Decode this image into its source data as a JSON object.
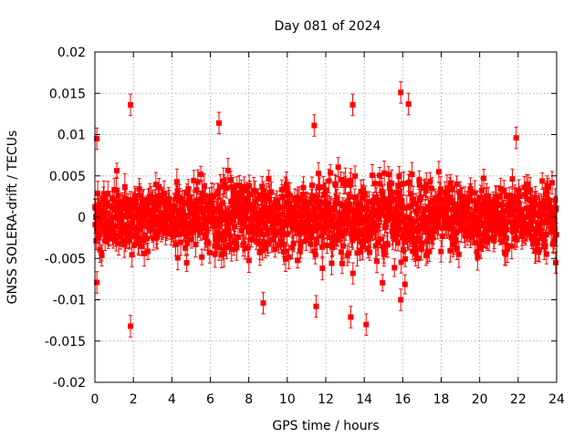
{
  "chart_data": {
    "type": "scatter",
    "title": "Day 081 of 2024",
    "xlabel": "GPS time / hours",
    "ylabel": "GNSS SOLERA-drift / TECUs",
    "xlim": [
      0,
      24
    ],
    "ylim": [
      -0.02,
      0.02
    ],
    "x_ticks": [
      0,
      2,
      4,
      6,
      8,
      10,
      12,
      14,
      16,
      18,
      20,
      22,
      24
    ],
    "y_ticks": [
      -0.02,
      -0.015,
      -0.01,
      -0.005,
      0,
      0.005,
      0.01,
      0.015,
      0.02
    ],
    "y_tick_labels": [
      "-0.02",
      "-0.015",
      "-0.01",
      "-0.005",
      "0",
      "0.005",
      "0.01",
      "0.015",
      "0.02"
    ],
    "grid": true,
    "marker": "square",
    "error_bars": true,
    "series_color": "#ff0000",
    "notable_points": [
      {
        "x": 1.85,
        "y": 0.0136
      },
      {
        "x": 1.85,
        "y": -0.0132
      },
      {
        "x": 15.9,
        "y": 0.0151
      },
      {
        "x": 16.3,
        "y": 0.0137
      },
      {
        "x": 13.4,
        "y": 0.0136
      },
      {
        "x": 11.4,
        "y": 0.0111
      },
      {
        "x": 6.45,
        "y": 0.0114
      },
      {
        "x": 0.1,
        "y": 0.0095
      },
      {
        "x": 0.1,
        "y": -0.0079
      },
      {
        "x": 13.3,
        "y": -0.0121
      },
      {
        "x": 14.1,
        "y": -0.013
      },
      {
        "x": 11.5,
        "y": -0.0108
      },
      {
        "x": 8.75,
        "y": -0.0104
      },
      {
        "x": 15.9,
        "y": -0.01
      },
      {
        "x": 21.9,
        "y": 0.0096
      },
      {
        "x": 23.95,
        "y": -0.0055
      }
    ]
  }
}
